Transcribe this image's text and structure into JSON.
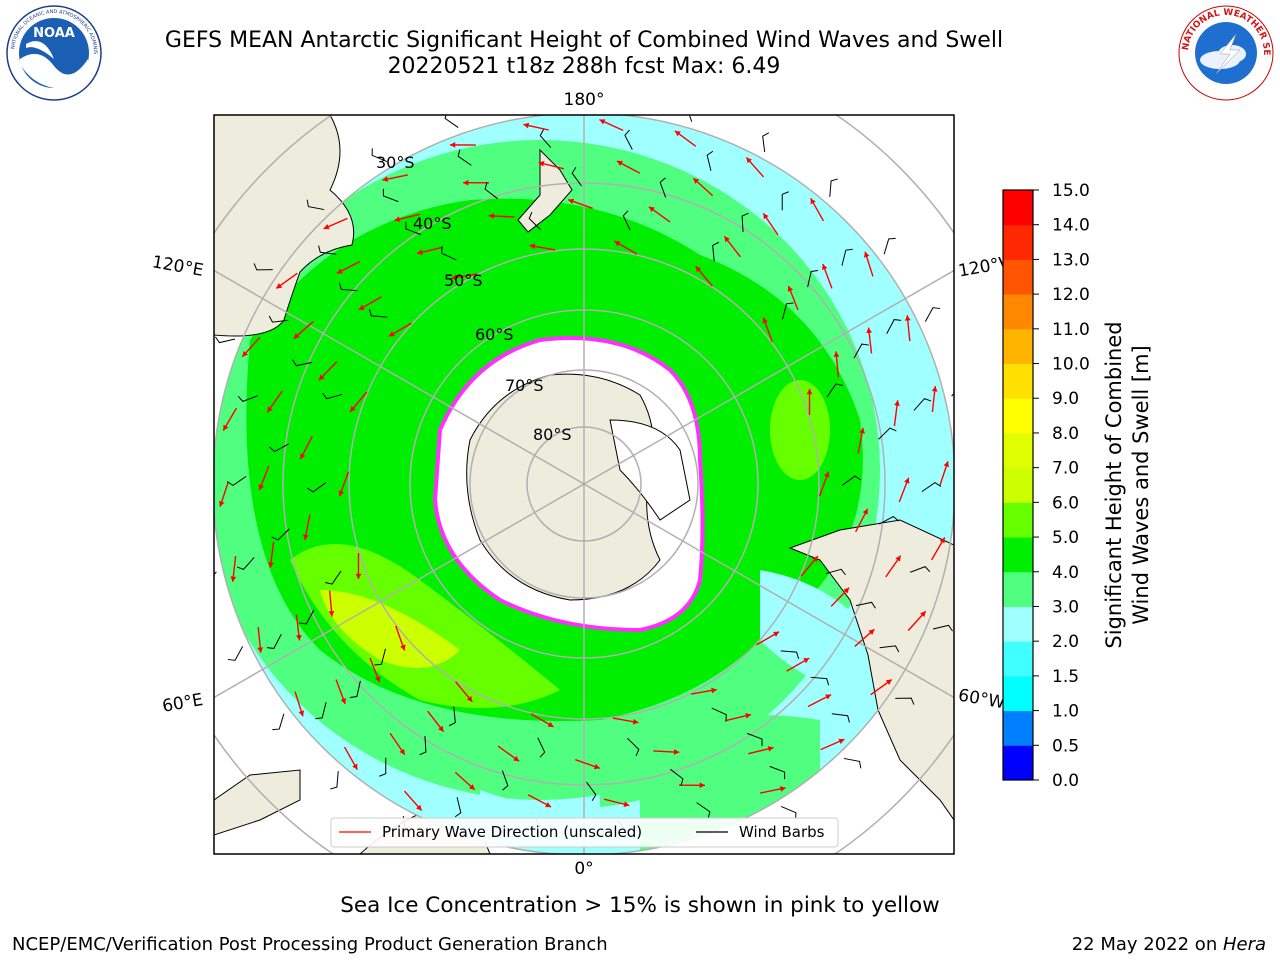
{
  "header": {
    "title_line1": "GEFS MEAN Antarctic Significant Height of Combined Wind Waves and Swell",
    "title_line2": "20220521 t18z 288h fcst   Max: 6.49"
  },
  "logos": {
    "left": "NOAA",
    "left_ring_text": "NATIONAL OCEANIC AND ATMOSPHERIC ADMINISTRATION · U.S. DEPARTMENT OF COMMERCE",
    "right_ring_text": "NATIONAL WEATHER SERVICE"
  },
  "map": {
    "longitude_labels": {
      "top": "180°",
      "bottom": "0°",
      "left_upper": "120°E",
      "left_lower": "60°E",
      "right_upper": "120°W",
      "right_lower": "60°W"
    },
    "latitude_labels": [
      "30°S",
      "40°S",
      "50°S",
      "60°S",
      "70°S",
      "80°S"
    ],
    "legend": {
      "wave_direction": "Primary Wave Direction (unscaled)",
      "wind_barbs": "Wind Barbs"
    },
    "colors": {
      "land": "#eeecdc",
      "ice": "#ffffff",
      "arrow": "#ff0000"
    }
  },
  "colorbar": {
    "label_line1": "Significant Height of Combined",
    "label_line2": "Wind Waves and Swell [m]",
    "ticks": [
      "0.0",
      "0.5",
      "1.0",
      "1.5",
      "2.0",
      "3.0",
      "4.0",
      "5.0",
      "6.0",
      "7.0",
      "8.0",
      "9.0",
      "10.0",
      "11.0",
      "12.0",
      "13.0",
      "14.0",
      "15.0"
    ],
    "colors": [
      "#0000ff",
      "#0080ff",
      "#00ffff",
      "#40ffff",
      "#a0ffff",
      "#50ff80",
      "#00ee00",
      "#66ff00",
      "#ccff00",
      "#dfff00",
      "#ffff00",
      "#ffe000",
      "#ffb400",
      "#ff8800",
      "#ff5500",
      "#ff2800",
      "#ff0000"
    ]
  },
  "footer": {
    "note": "Sea Ice Concentration > 15% is shown in pink to yellow",
    "left": "NCEP/EMC/Verification Post Processing Product Generation Branch",
    "date": "22 May 2022 on ",
    "host": "Hera"
  }
}
